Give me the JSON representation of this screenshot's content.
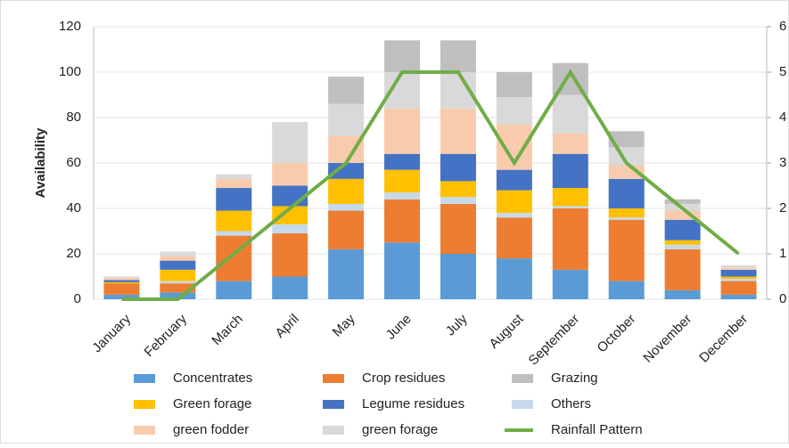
{
  "chart_data": {
    "type": "bar",
    "stacked": true,
    "y_label": "Availability",
    "categories": [
      "January",
      "February",
      "March",
      "April",
      "May",
      "June",
      "July",
      "August",
      "September",
      "October",
      "November",
      "December"
    ],
    "ylim": [
      0,
      120
    ],
    "yticks": [
      0,
      20,
      40,
      60,
      80,
      100,
      120
    ],
    "y2lim": [
      0,
      6
    ],
    "y2ticks": [
      0,
      1,
      2,
      3,
      4,
      5,
      6
    ],
    "series": [
      {
        "name": "Concentrates",
        "color": "#5b9bd5",
        "values": [
          2,
          3,
          8,
          10,
          22,
          25,
          20,
          18,
          13,
          8,
          4,
          2
        ]
      },
      {
        "name": "Crop residues",
        "color": "#ed7d31",
        "values": [
          5,
          4,
          20,
          19,
          17,
          19,
          22,
          18,
          27,
          27,
          18,
          6
        ]
      },
      {
        "name": "Others",
        "color": "#c5d9ea",
        "values": [
          0,
          1,
          2,
          4,
          3,
          3,
          3,
          2,
          1,
          1,
          2,
          1
        ]
      },
      {
        "name": "Green forage",
        "color": "#ffc000",
        "values": [
          0.5,
          5,
          9,
          8,
          11,
          10,
          7,
          10,
          8,
          4,
          2,
          1
        ]
      },
      {
        "name": "Legume residues",
        "color": "#4472c4",
        "values": [
          1,
          4,
          10,
          9,
          7,
          7,
          12,
          9,
          15,
          13,
          9,
          3
        ]
      },
      {
        "name": "green fodder",
        "color": "#f8cbad",
        "values": [
          1,
          2,
          4,
          10,
          12,
          20,
          20,
          20,
          9,
          6,
          4,
          1
        ]
      },
      {
        "name": "green  forage",
        "color": "#d9d9d9",
        "values": [
          0.5,
          2,
          2,
          18,
          14,
          16,
          16,
          12,
          17,
          8,
          3,
          1
        ]
      },
      {
        "name": "Grazing",
        "color": "#bfbfbf",
        "values": [
          0,
          0,
          0,
          0,
          12,
          14,
          14,
          11,
          14,
          7,
          2,
          0
        ]
      },
      {
        "name": "Rainfall Pattern",
        "color": "#70ad47",
        "type": "line",
        "axis": "y2",
        "values": [
          0,
          0,
          1,
          2,
          3,
          5,
          5,
          3,
          5,
          3,
          2,
          1
        ]
      }
    ]
  }
}
